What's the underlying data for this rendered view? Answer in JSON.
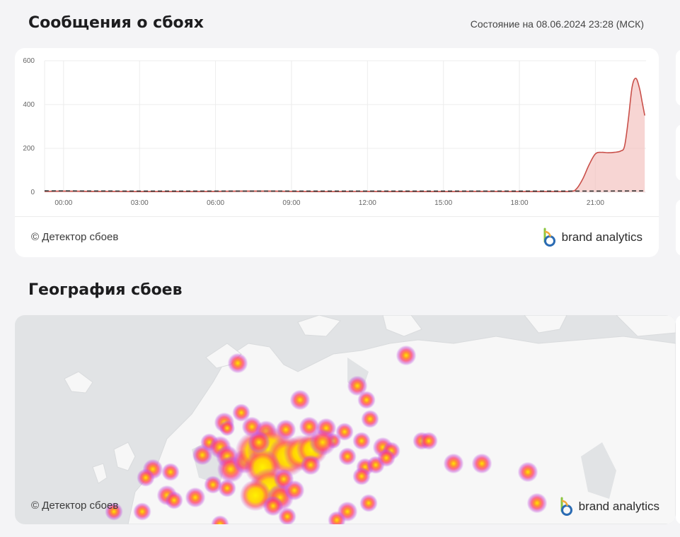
{
  "header": {
    "title": "Сообщения о сбоях",
    "status": "Состояние на 08.06.2024 23:28 (МСК)"
  },
  "chart_card": {
    "copyright": "© Детектор сбоев",
    "brand": "brand analytics"
  },
  "geo": {
    "title": "География сбоев",
    "copyright": "© Детектор сбоев",
    "brand": "brand analytics"
  },
  "colors": {
    "series_line": "#c9504a",
    "series_fill": "#f3c3c0",
    "baseline": "#333333",
    "heat_core": "#ffe600",
    "heat_mid": "#ff3d6e",
    "heat_outer": "#c34bd8",
    "map_water": "#e1e3e5",
    "map_land": "#f7f7f7"
  },
  "chart_data": {
    "type": "area",
    "x_unit": "hours since 00:00 (08.06.2024, MSK)",
    "ylim": [
      0,
      600
    ],
    "xlim": [
      -0.75,
      23.0
    ],
    "yticks": [
      "0",
      "200",
      "400",
      "600"
    ],
    "xticks": [
      "00:00",
      "03:00",
      "06:00",
      "09:00",
      "12:00",
      "15:00",
      "18:00",
      "21:00"
    ],
    "xtick_values": [
      0,
      3,
      6,
      9,
      12,
      15,
      18,
      21
    ],
    "grid": true,
    "legend": "none",
    "series": [
      {
        "kind": "reports",
        "x": [
          -0.75,
          0,
          1,
          2,
          3,
          4,
          5,
          6,
          7,
          8,
          9,
          10,
          11,
          12,
          13,
          14,
          15,
          16,
          17,
          18,
          19,
          20,
          20.25,
          20.5,
          20.75,
          21.0,
          21.25,
          21.5,
          21.75,
          22.0,
          22.15,
          22.3,
          22.45,
          22.6,
          22.75,
          22.85,
          22.95
        ],
        "y": [
          4,
          5,
          4,
          4,
          3,
          3,
          3,
          4,
          5,
          5,
          4,
          3,
          3,
          4,
          3,
          3,
          3,
          4,
          4,
          3,
          3,
          4,
          15,
          60,
          125,
          175,
          182,
          180,
          182,
          188,
          210,
          330,
          480,
          520,
          470,
          410,
          350
        ]
      },
      {
        "kind": "baseline",
        "dashed": true,
        "x": [
          -0.75,
          3,
          6,
          9,
          12,
          15,
          18,
          21,
          22.95
        ],
        "y": [
          6,
          5,
          5,
          5,
          5,
          5,
          5,
          5,
          6
        ]
      }
    ]
  }
}
